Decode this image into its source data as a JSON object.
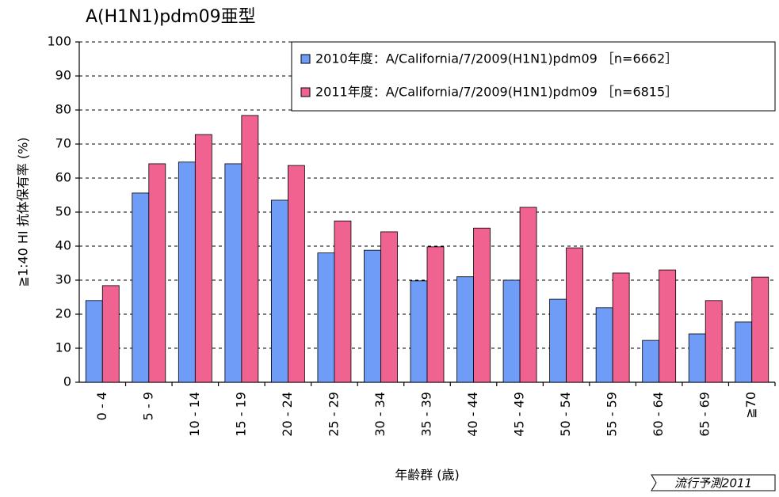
{
  "chart_data": {
    "type": "bar",
    "title": "A(H1N1)pdm09亜型",
    "y_label": "≧1:40 HI 抗体保有率 (%)",
    "x_label": "年齢群 (歳)",
    "footer": "流行予測2011",
    "categories": [
      "0 - 4",
      "5 - 9",
      "10 - 14",
      "15 - 19",
      "20 - 24",
      "25 - 29",
      "30 - 34",
      "35 - 39",
      "40 - 44",
      "45 - 49",
      "50 - 54",
      "55 - 59",
      "60 - 64",
      "65 - 69",
      "≧70"
    ],
    "series": [
      {
        "name": "2010年度：A/California/7/2009(H1N1)pdm09 ［n=6662］",
        "color": "#6f9cf7",
        "values": [
          24,
          55.6,
          64.7,
          64.2,
          53.5,
          38,
          38.8,
          29.8,
          31,
          30,
          24.4,
          21.9,
          12.3,
          14.2,
          17.7
        ]
      },
      {
        "name": "2011年度：A/California/7/2009(H1N1)pdm09 ［n=6815］",
        "color": "#f06290",
        "values": [
          28.4,
          64.2,
          72.8,
          78.4,
          63.7,
          47.4,
          44.2,
          39.8,
          45.3,
          51.4,
          39.5,
          32.1,
          33,
          24,
          30.9
        ]
      }
    ],
    "ylim": [
      0,
      100
    ],
    "yticks": [
      0,
      10,
      20,
      30,
      40,
      50,
      60,
      70,
      80,
      90,
      100
    ],
    "grid": true,
    "legend": "top-right"
  }
}
